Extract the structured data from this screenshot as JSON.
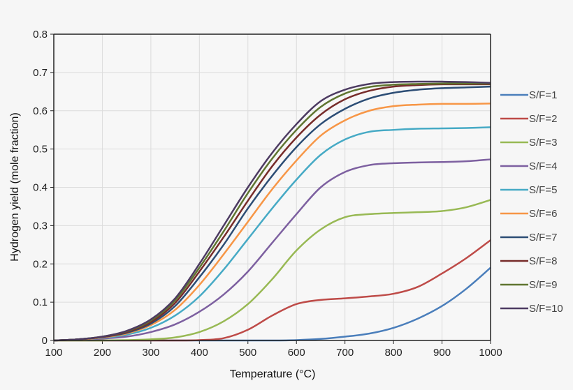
{
  "chart_data": {
    "type": "line",
    "title": "",
    "xlabel": "Temperature (°C)",
    "ylabel": "Hydrogen yield (mole fraction)",
    "xlim": [
      100,
      1000
    ],
    "ylim": [
      0,
      0.8
    ],
    "xticks": [
      "100",
      "200",
      "300",
      "400",
      "500",
      "600",
      "700",
      "800",
      "900",
      "1000"
    ],
    "yticks": [
      "0",
      "0.1",
      "0.2",
      "0.3",
      "0.4",
      "0.5",
      "0.6",
      "0.7",
      "0.8"
    ],
    "grid": true,
    "legend_position": "right",
    "x": [
      100,
      150,
      200,
      250,
      300,
      350,
      400,
      450,
      500,
      550,
      600,
      650,
      700,
      750,
      800,
      850,
      900,
      950,
      1000
    ],
    "series": [
      {
        "name": "S/F=1",
        "color": "#4a7ebb",
        "values": [
          0,
          0,
          0,
          0,
          0,
          0,
          0,
          0,
          0,
          0,
          0.001,
          0.004,
          0.01,
          0.018,
          0.033,
          0.057,
          0.09,
          0.135,
          0.19
        ]
      },
      {
        "name": "S/F=2",
        "color": "#be4b48",
        "values": [
          0,
          0,
          0,
          0,
          0,
          0,
          0.001,
          0.006,
          0.028,
          0.065,
          0.095,
          0.106,
          0.11,
          0.115,
          0.122,
          0.14,
          0.175,
          0.215,
          0.262
        ]
      },
      {
        "name": "S/F=3",
        "color": "#98b954",
        "values": [
          0,
          0,
          0,
          0.001,
          0.003,
          0.008,
          0.022,
          0.05,
          0.095,
          0.16,
          0.235,
          0.29,
          0.322,
          0.33,
          0.333,
          0.335,
          0.338,
          0.348,
          0.367
        ]
      },
      {
        "name": "S/F=4",
        "color": "#7d60a0",
        "values": [
          0,
          0.002,
          0.005,
          0.01,
          0.022,
          0.042,
          0.075,
          0.12,
          0.18,
          0.255,
          0.33,
          0.4,
          0.44,
          0.458,
          0.463,
          0.465,
          0.466,
          0.468,
          0.473
        ]
      },
      {
        "name": "S/F=5",
        "color": "#46aac5",
        "values": [
          0,
          0.002,
          0.007,
          0.015,
          0.033,
          0.065,
          0.115,
          0.185,
          0.265,
          0.345,
          0.42,
          0.485,
          0.525,
          0.545,
          0.55,
          0.553,
          0.554,
          0.555,
          0.557
        ]
      },
      {
        "name": "S/F=6",
        "color": "#f79646",
        "values": [
          0,
          0.002,
          0.008,
          0.018,
          0.04,
          0.08,
          0.145,
          0.225,
          0.31,
          0.395,
          0.47,
          0.535,
          0.575,
          0.6,
          0.612,
          0.616,
          0.618,
          0.618,
          0.619
        ]
      },
      {
        "name": "S/F=7",
        "color": "#2c4d75",
        "values": [
          0,
          0.003,
          0.009,
          0.02,
          0.044,
          0.09,
          0.165,
          0.25,
          0.345,
          0.43,
          0.505,
          0.565,
          0.605,
          0.632,
          0.647,
          0.655,
          0.659,
          0.661,
          0.663
        ]
      },
      {
        "name": "S/F=8",
        "color": "#772c2a",
        "values": [
          0,
          0.003,
          0.009,
          0.022,
          0.048,
          0.098,
          0.18,
          0.27,
          0.365,
          0.455,
          0.53,
          0.59,
          0.63,
          0.652,
          0.663,
          0.667,
          0.669,
          0.669,
          0.669
        ]
      },
      {
        "name": "S/F=9",
        "color": "#5f7530",
        "values": [
          0,
          0.003,
          0.01,
          0.024,
          0.052,
          0.105,
          0.19,
          0.285,
          0.385,
          0.475,
          0.55,
          0.61,
          0.645,
          0.662,
          0.668,
          0.67,
          0.671,
          0.671,
          0.671
        ]
      },
      {
        "name": "S/F=10",
        "color": "#4d3b62",
        "values": [
          0,
          0.003,
          0.01,
          0.025,
          0.055,
          0.11,
          0.2,
          0.3,
          0.4,
          0.49,
          0.565,
          0.625,
          0.655,
          0.67,
          0.675,
          0.676,
          0.676,
          0.675,
          0.673
        ]
      }
    ]
  }
}
